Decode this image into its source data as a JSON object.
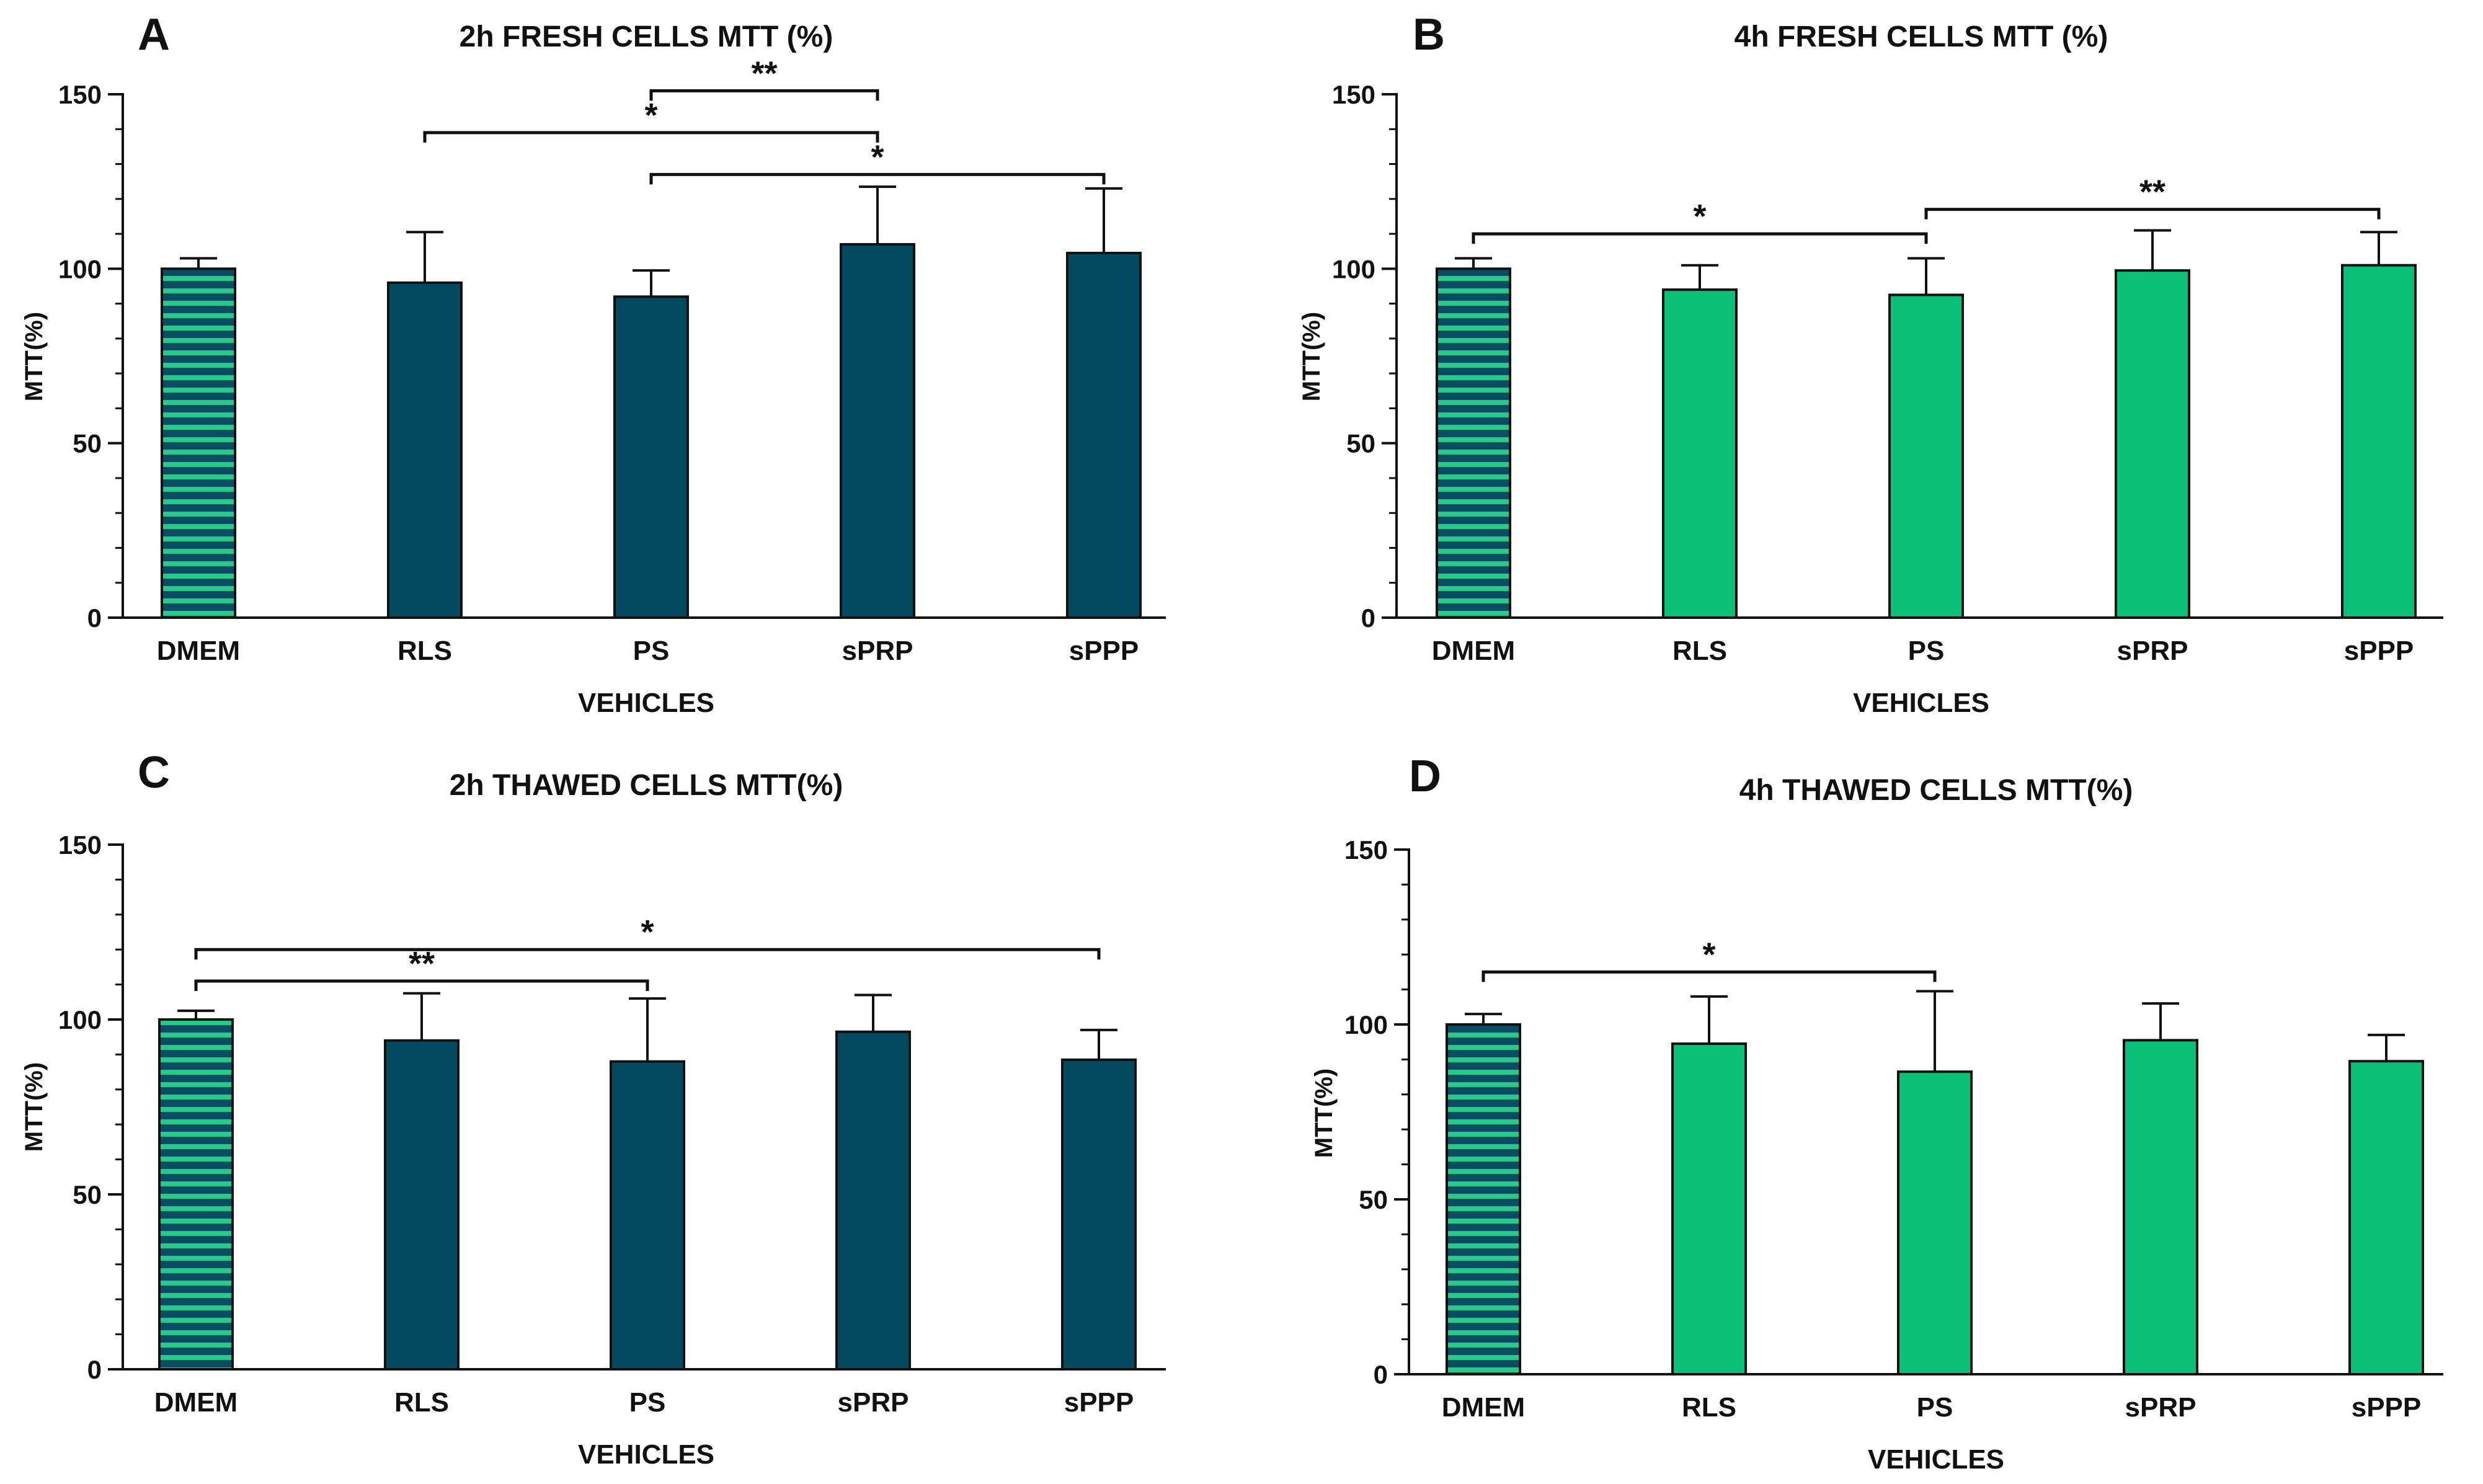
{
  "figure": {
    "colors": {
      "dark_bar": "#034a60",
      "green_bar": "#0abf78",
      "stripe_dark": "#0a4d63",
      "stripe_light": "#27c98a",
      "axis": "#111111"
    }
  },
  "chart_data": [
    {
      "type": "bar",
      "panel_letter": "A",
      "title": "2h FRESH CELLS MTT (%)",
      "xlabel": "VEHICLES",
      "ylabel": "MTT(%)",
      "ylim": [
        0,
        150
      ],
      "yticks": [
        0,
        50,
        100,
        150
      ],
      "grid": false,
      "categories": [
        "DMEM",
        "RLS",
        "PS",
        "sPRP",
        "sPPP"
      ],
      "values": [
        100,
        96,
        92,
        107,
        104.5
      ],
      "errors": [
        3,
        14.5,
        7.5,
        16.5,
        18.5
      ],
      "bar_style": [
        "striped",
        "dark",
        "dark",
        "dark",
        "dark"
      ],
      "significance": [
        {
          "from": "PS",
          "to": "sPRP",
          "label": "**",
          "y": 151
        },
        {
          "from": "RLS",
          "to": "sPRP",
          "label": "*",
          "y": 139
        },
        {
          "from": "PS",
          "to": "sPPP",
          "label": "*",
          "y": 127
        }
      ]
    },
    {
      "type": "bar",
      "panel_letter": "B",
      "title": "4h FRESH CELLS MTT (%)",
      "xlabel": "VEHICLES",
      "ylabel": "MTT(%)",
      "ylim": [
        0,
        150
      ],
      "yticks": [
        0,
        50,
        100,
        150
      ],
      "grid": false,
      "categories": [
        "DMEM",
        "RLS",
        "PS",
        "sPRP",
        "sPPP"
      ],
      "values": [
        100,
        94,
        92.5,
        99.5,
        101
      ],
      "errors": [
        3,
        7,
        10.5,
        11.5,
        9.5
      ],
      "bar_style": [
        "striped",
        "green",
        "green",
        "green",
        "green"
      ],
      "significance": [
        {
          "from": "DMEM",
          "to": "PS",
          "label": "*",
          "y": 110
        },
        {
          "from": "PS",
          "to": "sPPP",
          "label": "**",
          "y": 117
        }
      ]
    },
    {
      "type": "bar",
      "panel_letter": "C",
      "title": "2h THAWED CELLS MTT(%)",
      "xlabel": "VEHICLES",
      "ylabel": "MTT(%)",
      "ylim": [
        0,
        150
      ],
      "yticks": [
        0,
        50,
        100,
        150
      ],
      "grid": false,
      "categories": [
        "DMEM",
        "RLS",
        "PS",
        "sPRP",
        "sPPP"
      ],
      "values": [
        100,
        94,
        88,
        96.5,
        88.5
      ],
      "errors": [
        2.5,
        13.5,
        18,
        10.5,
        8.5
      ],
      "bar_style": [
        "striped",
        "dark",
        "dark",
        "dark",
        "dark"
      ],
      "significance": [
        {
          "from": "DMEM",
          "to": "sPPP",
          "label": "*",
          "y": 120
        },
        {
          "from": "DMEM",
          "to": "PS",
          "label": "**",
          "y": 111
        }
      ]
    },
    {
      "type": "bar",
      "panel_letter": "D",
      "title": "4h THAWED CELLS MTT(%)",
      "xlabel": "VEHICLES",
      "ylabel": "MTT(%)",
      "ylim": [
        0,
        150
      ],
      "yticks": [
        0,
        50,
        100,
        150
      ],
      "grid": false,
      "categories": [
        "DMEM",
        "RLS",
        "PS",
        "sPRP",
        "sPPP"
      ],
      "values": [
        100,
        94.5,
        86.5,
        95.5,
        89.5
      ],
      "errors": [
        3,
        13.5,
        23,
        10.5,
        7.5
      ],
      "bar_style": [
        "striped",
        "green",
        "green",
        "green",
        "green"
      ],
      "significance": [
        {
          "from": "DMEM",
          "to": "PS",
          "label": "*",
          "y": 115
        }
      ]
    }
  ]
}
